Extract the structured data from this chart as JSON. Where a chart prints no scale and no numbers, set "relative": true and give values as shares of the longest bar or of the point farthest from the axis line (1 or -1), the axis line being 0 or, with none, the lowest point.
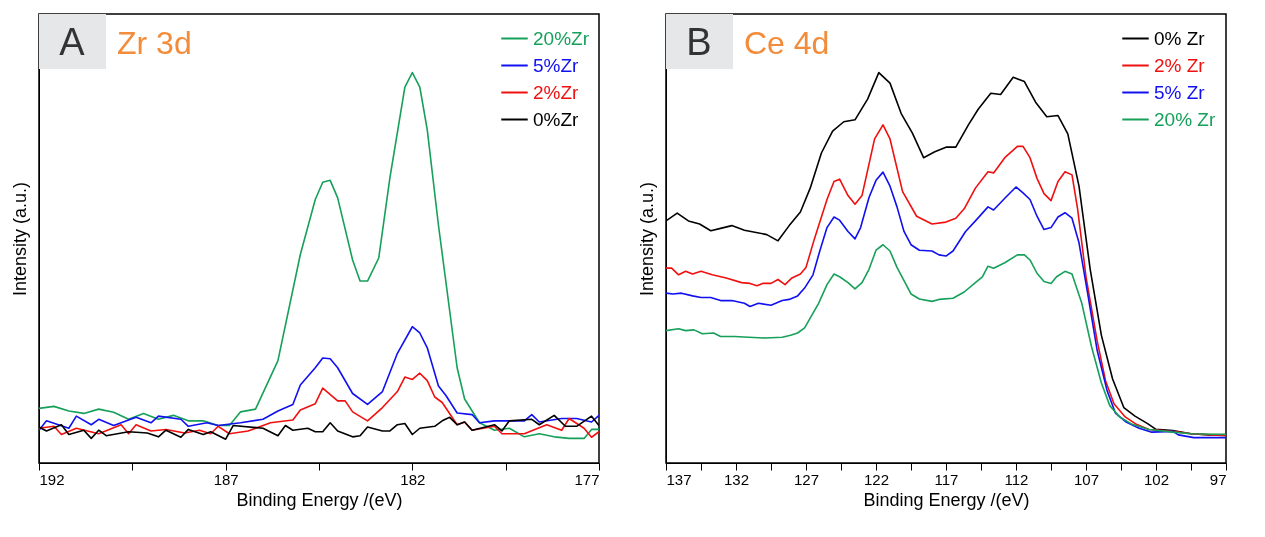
{
  "chart_data": [
    {
      "type": "line",
      "title": "Zr 3d",
      "annotations": [
        "A"
      ],
      "xlabel": "Binding Energy /(eV)",
      "ylabel": "Intensity (a.u.)",
      "relative": true,
      "legend": "top right",
      "xlim": [
        192,
        177
      ],
      "xticks": [
        192,
        {
          "value": 189.5,
          "label": null
        },
        187,
        {
          "value": 184.5,
          "label": null
        },
        182,
        {
          "value": 179.5,
          "label": null
        },
        177
      ],
      "series": [
        {
          "name": "20%Zr",
          "color": "#16a05a",
          "x": [
            192,
            191.6,
            191.2,
            190.8,
            190.4,
            190.0,
            189.6,
            189.2,
            188.8,
            188.4,
            188.0,
            187.6,
            187.2,
            186.9,
            186.6,
            186.2,
            185.6,
            185.0,
            184.6,
            184.4,
            184.2,
            184.0,
            183.6,
            183.4,
            183.2,
            182.9,
            182.6,
            182.2,
            182.0,
            181.8,
            181.6,
            181.3,
            180.8,
            180.6,
            180.2,
            179.8,
            179.4,
            179.0,
            178.6,
            178.2,
            177.8,
            177.4,
            177.2,
            177.0
          ],
          "values": [
            0.14,
            0.145,
            0.133,
            0.127,
            0.138,
            0.13,
            0.112,
            0.127,
            0.112,
            0.122,
            0.108,
            0.108,
            0.096,
            0.096,
            0.131,
            0.138,
            0.262,
            0.534,
            0.675,
            0.719,
            0.724,
            0.679,
            0.52,
            0.466,
            0.466,
            0.525,
            0.731,
            0.963,
            1.0,
            0.963,
            0.853,
            0.609,
            0.244,
            0.164,
            0.103,
            0.084,
            0.089,
            0.067,
            0.075,
            0.067,
            0.063,
            0.063,
            0.086,
            0.086
          ]
        },
        {
          "name": "5%Zr",
          "color": "#1010f0",
          "x": [
            192,
            191.8,
            191.2,
            191.0,
            190.6,
            190.4,
            190.0,
            189.4,
            189.0,
            188.8,
            188.2,
            188.0,
            187.5,
            187.2,
            186.6,
            186.0,
            185.6,
            185.2,
            185.0,
            184.6,
            184.4,
            184.2,
            184.0,
            183.6,
            183.2,
            182.8,
            182.4,
            182.0,
            181.8,
            181.6,
            181.3,
            181.1,
            180.8,
            180.4,
            180.2,
            179.8,
            179.4,
            179.0,
            178.8,
            178.6,
            178.0,
            177.6,
            177.2,
            177.0
          ],
          "values": [
            0.084,
            0.108,
            0.089,
            0.12,
            0.098,
            0.112,
            0.096,
            0.117,
            0.103,
            0.12,
            0.112,
            0.094,
            0.103,
            0.096,
            0.103,
            0.112,
            0.133,
            0.15,
            0.2,
            0.244,
            0.269,
            0.267,
            0.244,
            0.178,
            0.15,
            0.183,
            0.281,
            0.349,
            0.333,
            0.295,
            0.197,
            0.173,
            0.128,
            0.124,
            0.103,
            0.108,
            0.108,
            0.108,
            0.124,
            0.105,
            0.114,
            0.114,
            0.105,
            0.122
          ]
        },
        {
          "name": "2%Zr",
          "color": "#f01010",
          "x": [
            192,
            191.6,
            191.4,
            191.0,
            190.4,
            189.8,
            189.6,
            189.4,
            189.0,
            188.6,
            188.1,
            187.7,
            187.4,
            187.2,
            186.9,
            186.4,
            185.8,
            185.2,
            185.0,
            184.6,
            184.4,
            184.0,
            183.8,
            183.6,
            183.2,
            182.8,
            182.4,
            182.2,
            182.0,
            181.8,
            181.6,
            181.4,
            181.2,
            180.8,
            180.6,
            180.4,
            179.8,
            179.6,
            179.0,
            178.4,
            178.0,
            177.8,
            177.4,
            177.2,
            177.0
          ],
          "values": [
            0.089,
            0.094,
            0.073,
            0.089,
            0.075,
            0.098,
            0.075,
            0.098,
            0.082,
            0.086,
            0.077,
            0.084,
            0.075,
            0.094,
            0.075,
            0.082,
            0.103,
            0.11,
            0.136,
            0.152,
            0.192,
            0.159,
            0.159,
            0.131,
            0.108,
            0.142,
            0.183,
            0.22,
            0.214,
            0.23,
            0.211,
            0.169,
            0.155,
            0.098,
            0.105,
            0.084,
            0.094,
            0.075,
            0.075,
            0.098,
            0.084,
            0.114,
            0.089,
            0.066,
            0.08
          ]
        },
        {
          "name": "0%Zr",
          "color": "#000000",
          "x": [
            192,
            191.8,
            191.4,
            191.2,
            190.8,
            190.6,
            190.4,
            190.2,
            189.6,
            189.1,
            188.8,
            188.6,
            188.2,
            188.0,
            187.6,
            187.4,
            187.0,
            186.8,
            186.0,
            185.6,
            185.4,
            185.2,
            184.8,
            184.6,
            184.4,
            184.2,
            184.0,
            183.6,
            183.4,
            183.2,
            182.8,
            182.6,
            182.4,
            182.2,
            182.0,
            181.8,
            181.4,
            181.2,
            181.0,
            180.8,
            180.6,
            180.4,
            179.8,
            179.6,
            179.4,
            178.8,
            178.6,
            178.2,
            177.9,
            177.6,
            177.2,
            177.0
          ],
          "values": [
            0.092,
            0.082,
            0.098,
            0.073,
            0.084,
            0.063,
            0.084,
            0.07,
            0.08,
            0.077,
            0.067,
            0.084,
            0.066,
            0.086,
            0.073,
            0.08,
            0.061,
            0.096,
            0.089,
            0.07,
            0.096,
            0.084,
            0.089,
            0.08,
            0.08,
            0.103,
            0.082,
            0.067,
            0.07,
            0.092,
            0.082,
            0.082,
            0.098,
            0.101,
            0.073,
            0.089,
            0.094,
            0.108,
            0.117,
            0.098,
            0.105,
            0.084,
            0.098,
            0.082,
            0.108,
            0.112,
            0.098,
            0.122,
            0.094,
            0.094,
            0.12,
            0.096
          ]
        }
      ]
    },
    {
      "type": "line",
      "title": "Ce 4d",
      "annotations": [
        "B"
      ],
      "xlabel": "Binding Energy /(eV)",
      "ylabel": "Intensity (a.u.)",
      "relative": true,
      "legend": "top right",
      "xlim": [
        137,
        97
      ],
      "xticks": [
        137,
        {
          "value": 134.5,
          "label": null
        },
        132,
        {
          "value": 129.5,
          "label": null
        },
        127,
        {
          "value": 124.5,
          "label": null
        },
        122,
        {
          "value": 119.5,
          "label": null
        },
        117,
        {
          "value": 114.5,
          "label": null
        },
        112,
        {
          "value": 109.5,
          "label": null
        },
        107,
        {
          "value": 104.5,
          "label": null
        },
        102,
        {
          "value": 99.5,
          "label": null
        },
        97
      ],
      "series": [
        {
          "name": "0% Zr",
          "color": "#000000",
          "x": [
            137,
            136.2,
            135.4,
            134.6,
            133.8,
            133.1,
            132.3,
            131.4,
            129.8,
            129.0,
            128.2,
            127.4,
            126.7,
            125.9,
            125.1,
            124.3,
            123.5,
            122.6,
            121.8,
            121.0,
            120.2,
            119.4,
            118.6,
            117.8,
            117.0,
            116.3,
            115.4,
            114.7,
            113.8,
            113.1,
            112.2,
            111.4,
            110.6,
            109.8,
            109.0,
            108.3,
            107.5,
            106.7,
            105.9,
            105.1,
            104.3,
            103.5,
            102.6,
            102.0,
            100.8,
            99.5,
            98.2,
            97.0
          ],
          "values": [
            0.62,
            0.64,
            0.62,
            0.612,
            0.595,
            0.601,
            0.608,
            0.596,
            0.585,
            0.569,
            0.608,
            0.643,
            0.704,
            0.794,
            0.85,
            0.874,
            0.879,
            0.932,
            1.0,
            0.973,
            0.895,
            0.845,
            0.782,
            0.797,
            0.809,
            0.809,
            0.866,
            0.906,
            0.947,
            0.944,
            0.988,
            0.977,
            0.924,
            0.887,
            0.89,
            0.843,
            0.709,
            0.496,
            0.327,
            0.215,
            0.142,
            0.12,
            0.101,
            0.086,
            0.083,
            0.075,
            0.072,
            0.073
          ]
        },
        {
          "name": "2% Zr",
          "color": "#f01010",
          "x": [
            137,
            136.6,
            136.1,
            135.6,
            135.1,
            134.5,
            133.7,
            132.7,
            131.6,
            131.0,
            130.5,
            130.1,
            129.5,
            129.0,
            128.5,
            128.0,
            127.4,
            127.0,
            126.4,
            125.5,
            125.0,
            124.6,
            124.0,
            123.5,
            123.0,
            122.1,
            121.5,
            121.0,
            120.1,
            119.1,
            118.0,
            117.0,
            116.3,
            115.7,
            114.9,
            114.0,
            113.6,
            112.8,
            111.9,
            111.5,
            111.0,
            110.5,
            110.0,
            109.5,
            109.0,
            108.5,
            108.0,
            107.6,
            107.0,
            106.2,
            105.6,
            105.0,
            104.2,
            103.4,
            102.5,
            100.8,
            99.5,
            97.0
          ],
          "values": [
            0.499,
            0.499,
            0.482,
            0.491,
            0.484,
            0.491,
            0.482,
            0.474,
            0.462,
            0.46,
            0.454,
            0.46,
            0.46,
            0.47,
            0.457,
            0.474,
            0.484,
            0.501,
            0.574,
            0.675,
            0.721,
            0.727,
            0.685,
            0.663,
            0.685,
            0.83,
            0.866,
            0.83,
            0.695,
            0.632,
            0.612,
            0.617,
            0.627,
            0.651,
            0.704,
            0.746,
            0.743,
            0.782,
            0.811,
            0.811,
            0.782,
            0.729,
            0.69,
            0.672,
            0.721,
            0.746,
            0.738,
            0.651,
            0.477,
            0.312,
            0.21,
            0.152,
            0.118,
            0.099,
            0.086,
            0.081,
            0.075,
            0.07
          ]
        },
        {
          "name": "5% Zr",
          "color": "#1010f0",
          "x": [
            137,
            136.5,
            135.9,
            135.1,
            134.5,
            133.8,
            133.1,
            132.3,
            131.4,
            131.0,
            130.4,
            129.5,
            128.7,
            128.2,
            127.6,
            127.1,
            126.5,
            126.0,
            125.5,
            125.0,
            124.6,
            124.0,
            123.5,
            123.1,
            122.5,
            122.0,
            121.5,
            121.0,
            120.5,
            120.0,
            119.5,
            118.9,
            118.0,
            117.5,
            117.0,
            116.5,
            115.6,
            114.8,
            114.0,
            113.6,
            112.8,
            112.0,
            111.5,
            111.0,
            110.5,
            110.0,
            109.5,
            109.0,
            108.5,
            108.0,
            107.5,
            106.9,
            106.2,
            105.5,
            104.9,
            104.1,
            103.2,
            102.3,
            100.8,
            100.4,
            99.3,
            98.2,
            97.0
          ],
          "values": [
            0.435,
            0.433,
            0.435,
            0.428,
            0.424,
            0.424,
            0.416,
            0.416,
            0.409,
            0.401,
            0.409,
            0.404,
            0.416,
            0.419,
            0.428,
            0.448,
            0.482,
            0.545,
            0.603,
            0.63,
            0.622,
            0.593,
            0.574,
            0.603,
            0.68,
            0.724,
            0.745,
            0.709,
            0.656,
            0.593,
            0.559,
            0.545,
            0.543,
            0.533,
            0.53,
            0.543,
            0.593,
            0.624,
            0.656,
            0.648,
            0.678,
            0.707,
            0.692,
            0.675,
            0.632,
            0.598,
            0.603,
            0.63,
            0.641,
            0.627,
            0.564,
            0.438,
            0.288,
            0.186,
            0.128,
            0.104,
            0.089,
            0.079,
            0.081,
            0.072,
            0.065,
            0.065,
            0.065
          ]
        },
        {
          "name": "20% Zr",
          "color": "#16a05a",
          "x": [
            137,
            136.1,
            135.6,
            135.0,
            134.4,
            133.6,
            133.1,
            132.1,
            131.1,
            129.9,
            128.7,
            128.1,
            127.6,
            127.1,
            126.1,
            125.5,
            125.0,
            124.6,
            124.0,
            123.5,
            123.0,
            122.5,
            122.0,
            121.5,
            121.0,
            120.5,
            120.0,
            119.5,
            118.9,
            118.0,
            117.5,
            116.5,
            115.7,
            114.9,
            114.4,
            114.0,
            113.6,
            112.8,
            111.9,
            111.4,
            111.0,
            110.5,
            110.0,
            109.5,
            109.1,
            108.5,
            108.0,
            107.3,
            106.6,
            105.9,
            105.3,
            104.6,
            103.7,
            102.5,
            100.8,
            99.5,
            97.0
          ],
          "values": [
            0.339,
            0.344,
            0.339,
            0.341,
            0.331,
            0.333,
            0.324,
            0.324,
            0.322,
            0.32,
            0.322,
            0.327,
            0.333,
            0.346,
            0.409,
            0.457,
            0.484,
            0.477,
            0.462,
            0.446,
            0.462,
            0.496,
            0.545,
            0.559,
            0.543,
            0.501,
            0.467,
            0.433,
            0.42,
            0.414,
            0.419,
            0.422,
            0.438,
            0.462,
            0.477,
            0.504,
            0.499,
            0.513,
            0.533,
            0.533,
            0.52,
            0.486,
            0.465,
            0.46,
            0.477,
            0.491,
            0.484,
            0.409,
            0.297,
            0.205,
            0.147,
            0.118,
            0.099,
            0.086,
            0.079,
            0.075,
            0.073
          ]
        }
      ]
    }
  ]
}
